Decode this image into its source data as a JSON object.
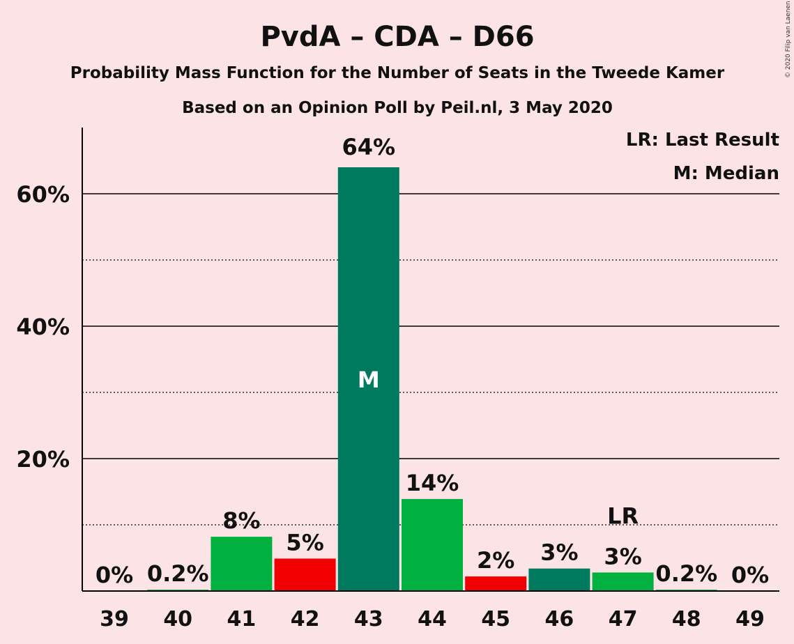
{
  "chart_data": {
    "type": "bar",
    "title": "PvdA – CDA – D66",
    "subtitle": "Probability Mass Function for the Number of Seats in the Tweede Kamer",
    "subtitle2": "Based on an Opinion Poll by Peil.nl, 3 May 2020",
    "credit": "© 2020 Filip van Laenen",
    "categories": [
      "39",
      "40",
      "41",
      "42",
      "43",
      "44",
      "45",
      "46",
      "47",
      "48",
      "49"
    ],
    "values": [
      0,
      0.2,
      8.2,
      4.9,
      64.0,
      13.9,
      2.2,
      3.4,
      2.8,
      0.2,
      0
    ],
    "data_labels": [
      "0%",
      "0.2%",
      "8%",
      "5%",
      "64%",
      "14%",
      "2%",
      "3%",
      "3%",
      "0.2%",
      "0%"
    ],
    "bar_colors": [
      "#00B140",
      "#00B140",
      "#00B140",
      "#F00000",
      "#007A5E",
      "#00B140",
      "#F00000",
      "#007A5E",
      "#00B140",
      "#00B140",
      "#00B140"
    ],
    "ylim": [
      0,
      70
    ],
    "y_ticks_major": [
      20,
      40,
      60
    ],
    "y_tick_labels": [
      "20%",
      "40%",
      "60%"
    ],
    "y_ticks_minor": [
      10,
      30,
      50
    ],
    "median": {
      "category": "43",
      "label": "M"
    },
    "last_result": {
      "category": "47",
      "label": "LR"
    },
    "legend": {
      "placement": "top-right",
      "entries": [
        "LR: Last Result",
        "M: Median"
      ]
    },
    "grid": true
  }
}
